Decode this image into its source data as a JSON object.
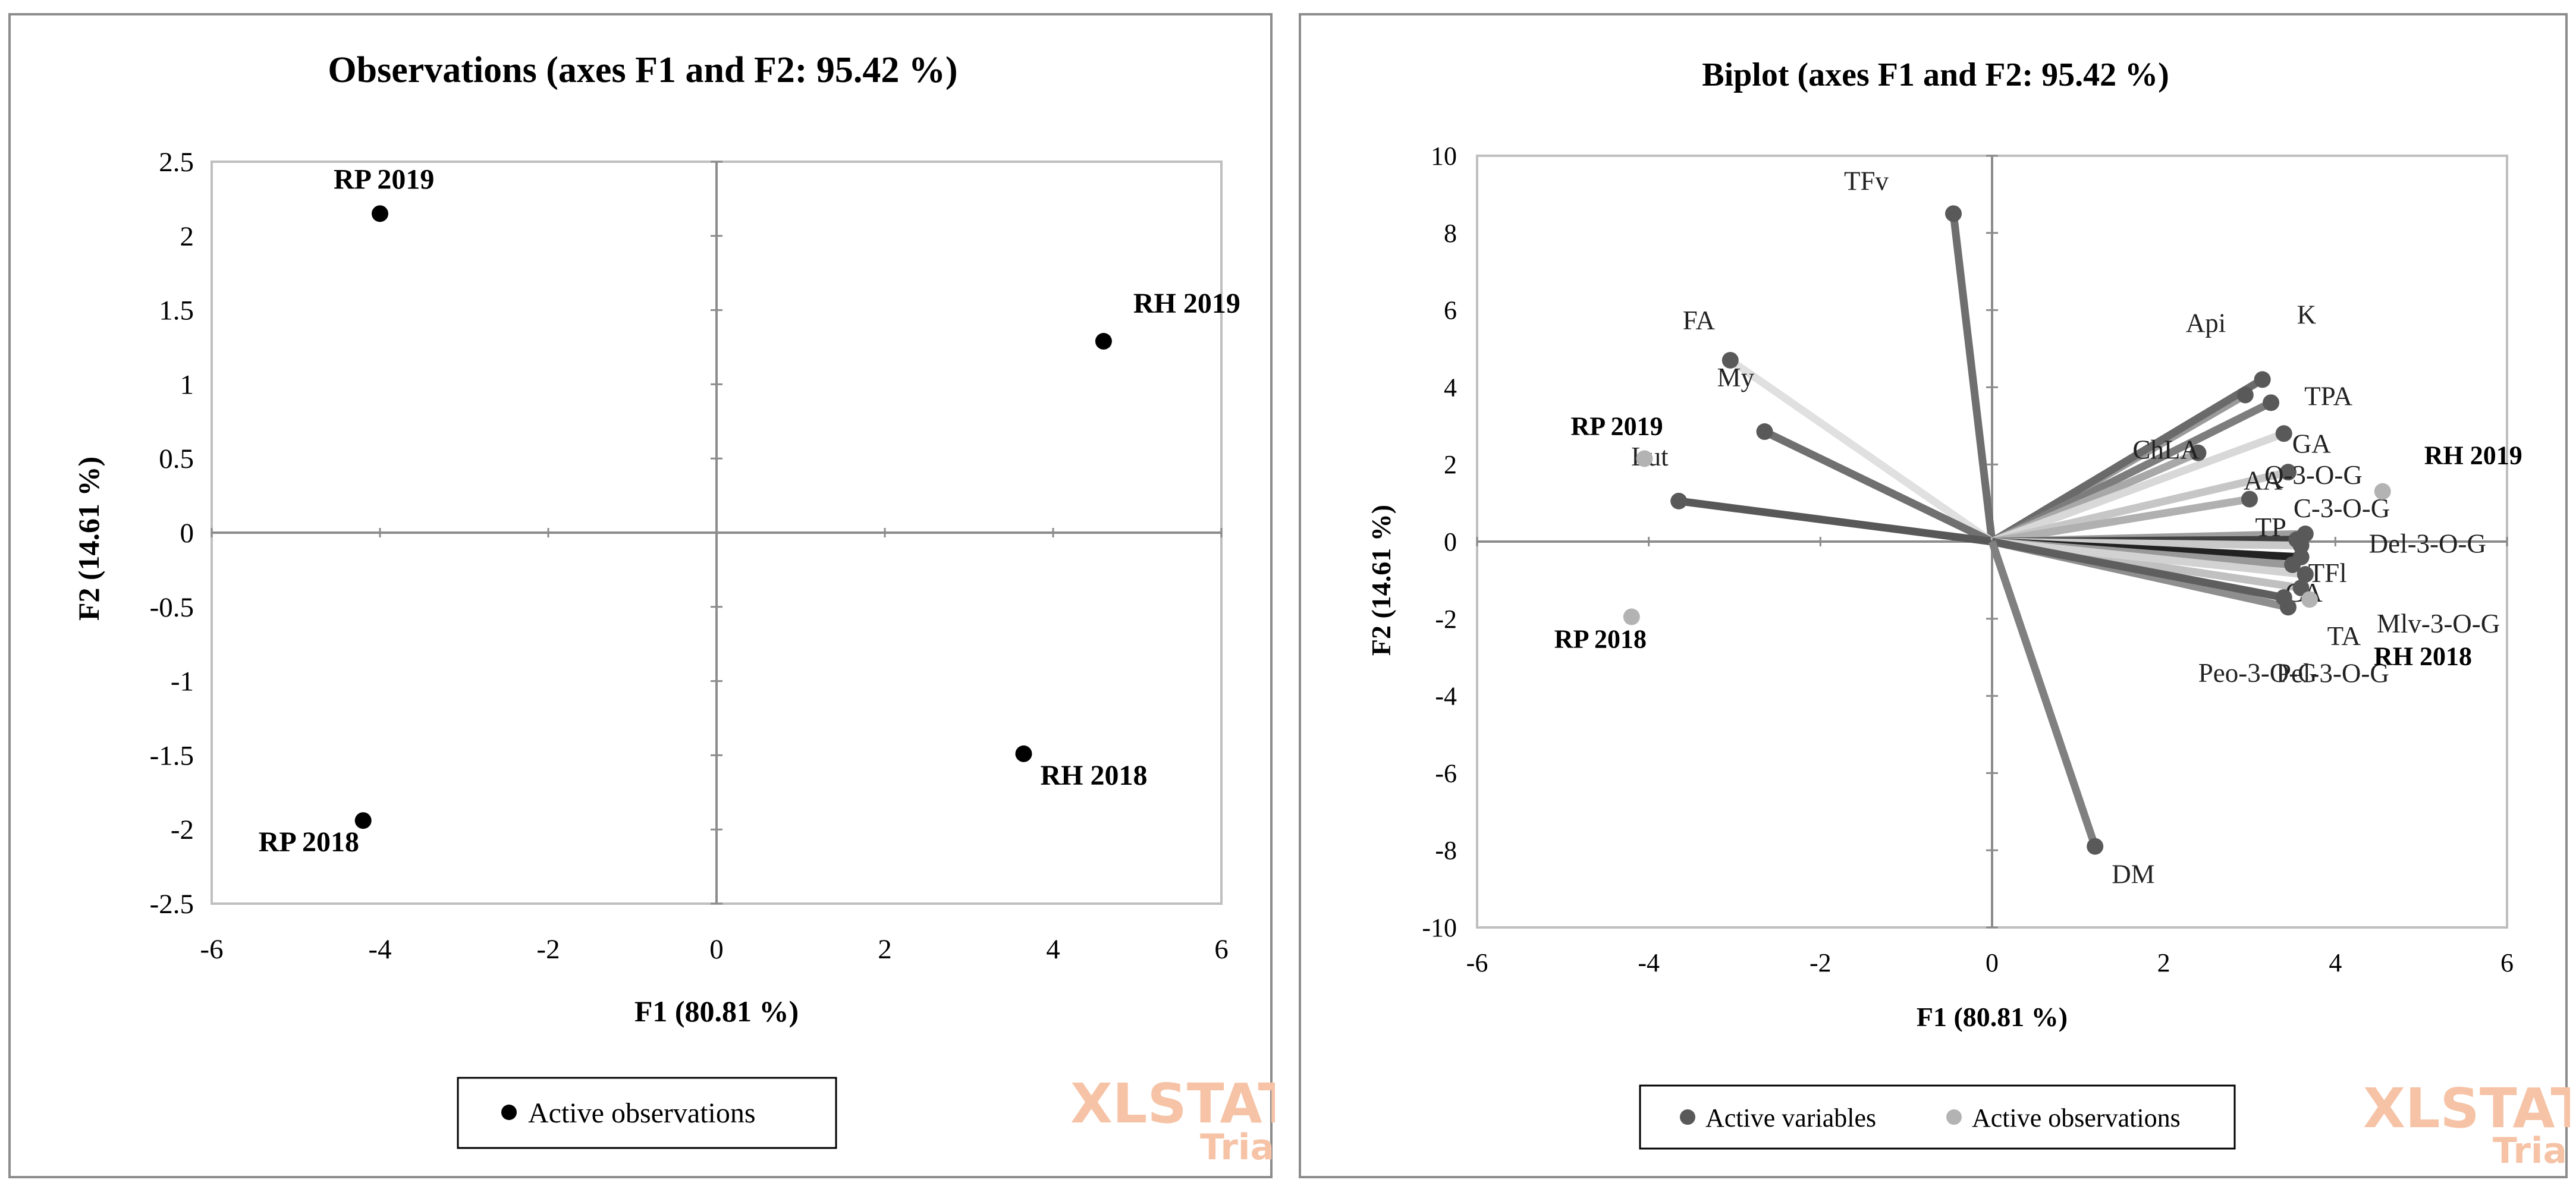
{
  "colors": {
    "obs_left": "#000000",
    "var": "#595959",
    "obs_right": "#b3b3b3",
    "frame": "#bfbfbf",
    "axis": "#8c8c8c",
    "watermark": "#f6c3a6"
  },
  "watermark": {
    "line1": "XLSTAT",
    "line2": "Trial"
  },
  "chart_data": [
    {
      "type": "scatter",
      "title": "Observations (axes F1 and F2: 95.42 %)",
      "xlabel": "F1 (80.81 %)",
      "ylabel": "F2 (14.61 %)",
      "xlim": [
        -6,
        6
      ],
      "ylim": [
        -2.5,
        2.5
      ],
      "xticks": [
        -6,
        -4,
        -2,
        0,
        2,
        4,
        6
      ],
      "yticks": [
        2.5,
        2,
        1.5,
        1,
        0.5,
        0,
        -0.5,
        -1,
        -1.5,
        -2,
        -2.5
      ],
      "yticks_text": [
        "2.5",
        "2",
        "1.5",
        "1",
        "0.5",
        "0",
        "-0.5",
        "-1",
        "-1.5",
        "-2",
        "-2.5"
      ],
      "legend": [
        "Active observations"
      ],
      "points": [
        {
          "label": "RP 2019",
          "x": -4.0,
          "y": 2.15
        },
        {
          "label": "RH 2019",
          "x": 4.6,
          "y": 1.29
        },
        {
          "label": "RH 2018",
          "x": 3.65,
          "y": -1.49
        },
        {
          "label": "RP 2018",
          "x": -4.2,
          "y": -1.94
        }
      ]
    },
    {
      "type": "biplot",
      "title": "Biplot (axes F1 and F2: 95.42 %)",
      "xlabel": "F1 (80.81 %)",
      "ylabel": "F2 (14.61 %)",
      "xlim": [
        -6,
        6
      ],
      "ylim": [
        -10,
        10
      ],
      "xticks": [
        -6,
        -4,
        -2,
        0,
        2,
        4,
        6
      ],
      "yticks": [
        10,
        8,
        6,
        4,
        2,
        0,
        -2,
        -4,
        -6,
        -8,
        -10
      ],
      "legend": [
        "Active variables",
        "Active observations"
      ],
      "variables": [
        {
          "label": "TFv",
          "x": -0.45,
          "y": 8.5
        },
        {
          "label": "FA",
          "x": -3.05,
          "y": 4.7
        },
        {
          "label": "My",
          "x": -2.65,
          "y": 2.85
        },
        {
          "label": "Lut",
          "x": -3.65,
          "y": 1.05
        },
        {
          "label": "Api",
          "x": 2.95,
          "y": 3.8
        },
        {
          "label": "K",
          "x": 3.15,
          "y": 4.2
        },
        {
          "label": "TPA",
          "x": 3.25,
          "y": 3.6
        },
        {
          "label": "ChLA",
          "x": 2.4,
          "y": 2.3
        },
        {
          "label": "GA",
          "x": 3.4,
          "y": 2.8
        },
        {
          "label": "Q-3-O-G",
          "x": 3.45,
          "y": 1.8
        },
        {
          "label": "AA",
          "x": 3.0,
          "y": 1.1
        },
        {
          "label": "C-3-O-G",
          "x": 3.65,
          "y": 0.2
        },
        {
          "label": "TP",
          "x": 3.55,
          "y": 0.05
        },
        {
          "label": "Del-3-O-G",
          "x": 3.6,
          "y": -0.1
        },
        {
          "label": "TFl",
          "x": 3.6,
          "y": -0.4
        },
        {
          "label": "CA",
          "x": 3.5,
          "y": -0.6
        },
        {
          "label": "TA",
          "x": 3.6,
          "y": -1.2
        },
        {
          "label": "Mlv-3-O-G",
          "x": 3.65,
          "y": -0.85
        },
        {
          "label": "Pel-3-O-G",
          "x": 3.45,
          "y": -1.7
        },
        {
          "label": "Peo-3-O-G",
          "x": 3.4,
          "y": -1.45
        },
        {
          "label": "DM",
          "x": 1.2,
          "y": -7.9
        }
      ],
      "observations": [
        {
          "label": "RP 2019",
          "x": -4.05,
          "y": 2.15
        },
        {
          "label": "RH 2019",
          "x": 4.55,
          "y": 1.3
        },
        {
          "label": "RP 2018",
          "x": -4.2,
          "y": -1.95
        },
        {
          "label": "RH 2018",
          "x": 3.7,
          "y": -1.5
        }
      ]
    }
  ]
}
